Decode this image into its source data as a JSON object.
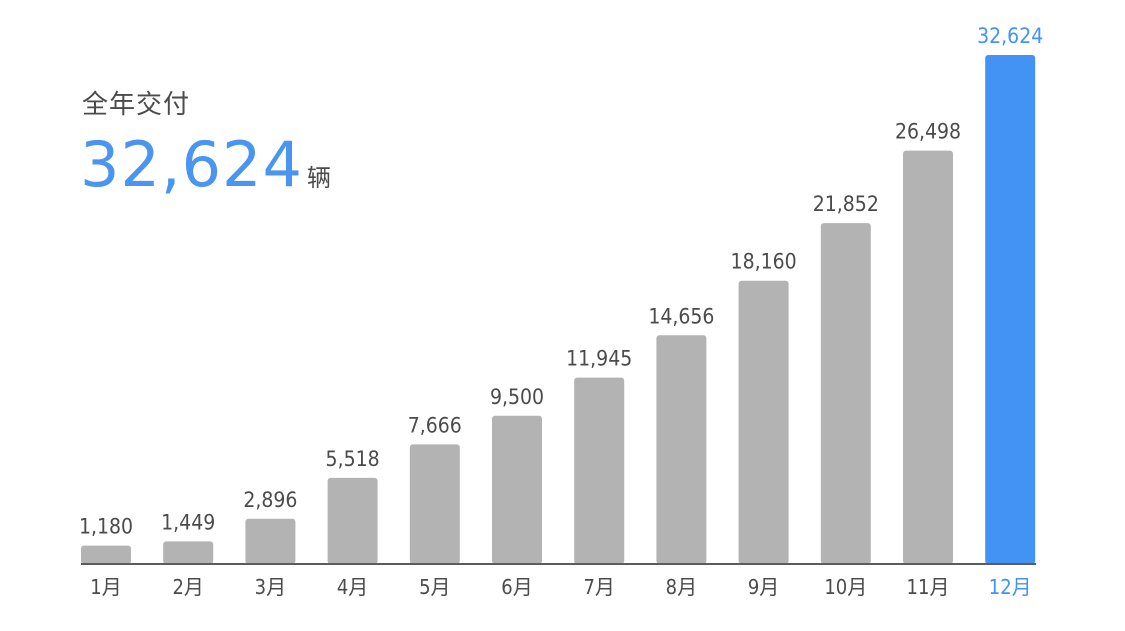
{
  "summary": {
    "title": "全年交付",
    "value": "32,624",
    "unit": "辆"
  },
  "chart_data": {
    "type": "bar",
    "categories": [
      "1月",
      "2月",
      "3月",
      "4月",
      "5月",
      "6月",
      "7月",
      "8月",
      "9月",
      "10月",
      "11月",
      "12月"
    ],
    "values": [
      1180,
      1449,
      2896,
      5518,
      7666,
      9500,
      11945,
      14656,
      18160,
      21852,
      26498,
      32624
    ],
    "value_labels": [
      "1,180",
      "1,449",
      "2,896",
      "5,518",
      "7,666",
      "9,500",
      "11,945",
      "14,656",
      "18,160",
      "21,852",
      "26,498",
      "32,624"
    ],
    "highlight_index": 11,
    "title": "",
    "xlabel": "",
    "ylabel": "",
    "ylim": [
      0,
      32624
    ],
    "grid": false,
    "legend": "none",
    "colors": {
      "bar": "#b3b3b3",
      "highlight": "#4393f5",
      "label": "#4b4b4b",
      "highlight_label": "#4393f5",
      "axis": "#5c5c5c"
    }
  }
}
